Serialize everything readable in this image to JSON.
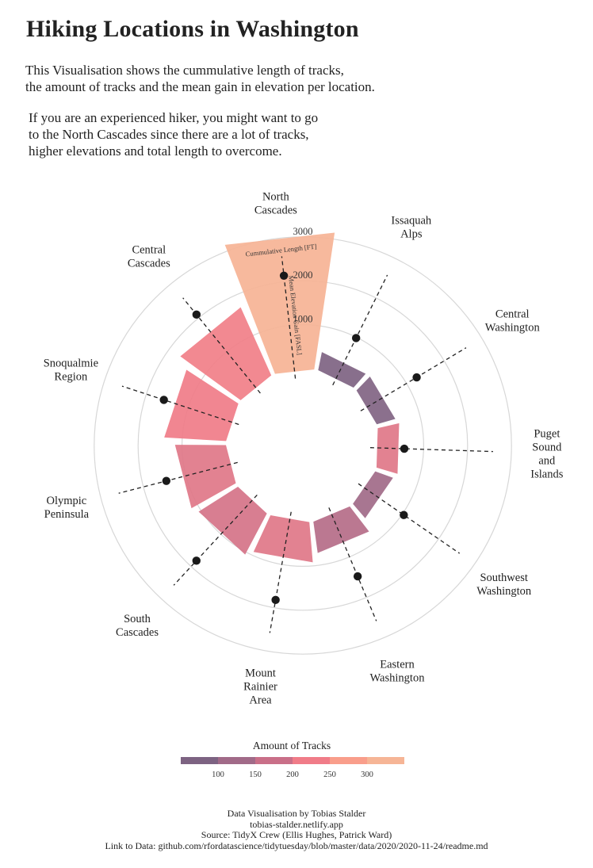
{
  "title": "Hiking Locations in Washington",
  "intro": [
    [
      "This Visualisation shows the cummulative length of tracks,",
      "the amount of tracks and the mean gain in elevation per location."
    ],
    [
      "If you are an experienced hiker, you might want to go",
      "to the North Cascades since there are a lot of tracks,",
      "higher elevations and total length to overcome."
    ]
  ],
  "chart_data": {
    "type": "radial-bar",
    "series_names": [
      "Cumulative Length",
      "Amount of Tracks",
      "Mean Elevation Gain"
    ],
    "radial_axis": {
      "ticks": [
        1000,
        2000,
        3000
      ]
    },
    "inner_labels": {
      "bar": "Cummulative Length [FT]",
      "dots": "Mean Elevation Gain [FASL]"
    },
    "categories": [
      {
        "name": [
          "Issaquah",
          "Alps"
        ],
        "length": 420,
        "tracks": 76,
        "elevation": 980
      },
      {
        "name": [
          "Central",
          "Washington"
        ],
        "length": 440,
        "tracks": 80,
        "elevation": 1270
      },
      {
        "name": [
          "Puget",
          "Sound",
          "and",
          "Islands"
        ],
        "length": 500,
        "tracks": 205,
        "elevation": 560
      },
      {
        "name": [
          "Southwest",
          "Washington"
        ],
        "length": 430,
        "tracks": 125,
        "elevation": 1040
      },
      {
        "name": [
          "Eastern",
          "Washington"
        ],
        "length": 720,
        "tracks": 150,
        "elevation": 1480
      },
      {
        "name": [
          "Mount",
          "Rainier",
          "Area"
        ],
        "length": 920,
        "tracks": 205,
        "elevation": 1820
      },
      {
        "name": [
          "South",
          "Cascades"
        ],
        "length": 1060,
        "tracks": 190,
        "elevation": 1820
      },
      {
        "name": [
          "Olympic",
          "Peninsula"
        ],
        "length": 1160,
        "tracks": 205,
        "elevation": 1460
      },
      {
        "name": [
          "Snoqualmie",
          "Region"
        ],
        "length": 1410,
        "tracks": 225,
        "elevation": 1580
      },
      {
        "name": [
          "Central",
          "Cascades"
        ],
        "length": 1700,
        "tracks": 230,
        "elevation": 2090
      },
      {
        "name": [
          "North",
          "Cascades"
        ],
        "length": 3150,
        "tracks": 330,
        "elevation": 2140
      }
    ]
  },
  "legend": {
    "title": "Amount of Tracks",
    "tick_labels": [
      "100",
      "150",
      "200",
      "250",
      "300"
    ],
    "colors": [
      "#7d6382",
      "#a16a88",
      "#c96f88",
      "#f07c88",
      "#f99e8b",
      "#f6b596"
    ]
  },
  "colors": {
    "ring": "#d7d7d7",
    "dash": "#222222",
    "dot": "#1a1a1a"
  },
  "footer": [
    "Data Visualisation by Tobias Stalder",
    "tobias-stalder.netlify.app",
    "Source: TidyX Crew (Ellis Hughes, Patrick Ward)",
    "Link to Data: github.com/rfordatascience/tidytuesday/blob/master/data/2020/2020-11-24/readme.md"
  ]
}
